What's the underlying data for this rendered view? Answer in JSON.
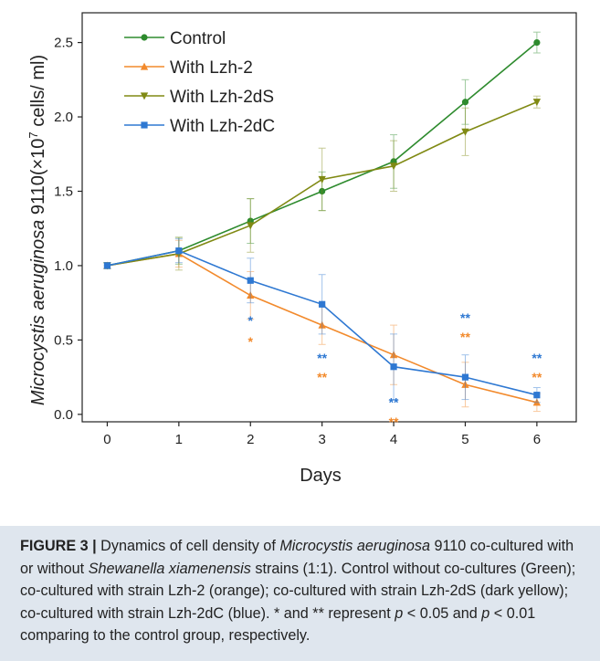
{
  "chart_data": {
    "type": "line",
    "xlabel": "Days",
    "ylabel_italic": "Microcystis aeruginosa",
    "ylabel_rest": " 9110(×10",
    "ylabel_sup": "7",
    "ylabel_end": " cells/ ml)",
    "x_ticks": [
      "0",
      "1",
      "2",
      "3",
      "4",
      "5",
      "6"
    ],
    "y_ticks": [
      "0.0",
      "0.5",
      "1.0",
      "1.5",
      "2.0",
      "2.5"
    ],
    "xlim": [
      -0.35,
      6.55
    ],
    "ylim": [
      -0.05,
      2.7
    ],
    "grid": false,
    "legend_position": "top-left",
    "series": [
      {
        "name": "Control",
        "color": "#2e8b2e",
        "marker": "circle",
        "x": [
          0,
          1,
          2,
          3,
          4,
          5,
          6
        ],
        "y": [
          1.0,
          1.1,
          1.3,
          1.5,
          1.7,
          2.1,
          2.5
        ],
        "err": [
          0.02,
          0.09,
          0.15,
          0.13,
          0.18,
          0.15,
          0.07
        ]
      },
      {
        "name": "With Lzh-2",
        "color": "#f28a2c",
        "marker": "triangle-up",
        "x": [
          0,
          1,
          2,
          3,
          4,
          5,
          6
        ],
        "y": [
          1.0,
          1.08,
          0.8,
          0.6,
          0.4,
          0.2,
          0.08
        ],
        "err": [
          0.02,
          0.09,
          0.16,
          0.13,
          0.2,
          0.15,
          0.06
        ]
      },
      {
        "name": "With Lzh-2dS",
        "color": "#808a14",
        "marker": "triangle-down",
        "x": [
          0,
          1,
          2,
          3,
          4,
          5,
          6
        ],
        "y": [
          1.0,
          1.08,
          1.27,
          1.58,
          1.67,
          1.9,
          2.1
        ],
        "err": [
          0.02,
          0.11,
          0.18,
          0.21,
          0.17,
          0.16,
          0.04
        ]
      },
      {
        "name": "With Lzh-2dC",
        "color": "#2e78d2",
        "marker": "square",
        "x": [
          0,
          1,
          2,
          3,
          4,
          5,
          6
        ],
        "y": [
          1.0,
          1.1,
          0.9,
          0.74,
          0.32,
          0.25,
          0.13
        ],
        "err": [
          0.02,
          0.08,
          0.15,
          0.2,
          0.22,
          0.15,
          0.05
        ]
      }
    ],
    "annotations": [
      {
        "x": 2,
        "y": 0.6,
        "text": "*",
        "color": "#2e78d2"
      },
      {
        "x": 2,
        "y": 0.46,
        "text": "*",
        "color": "#f28a2c"
      },
      {
        "x": 3,
        "y": 0.35,
        "text": "**",
        "color": "#2e78d2"
      },
      {
        "x": 3,
        "y": 0.22,
        "text": "**",
        "color": "#f28a2c"
      },
      {
        "x": 4,
        "y": 0.05,
        "text": "**",
        "color": "#2e78d2"
      },
      {
        "x": 4,
        "y": -0.08,
        "text": "**",
        "color": "#f28a2c"
      },
      {
        "x": 5,
        "y": 0.62,
        "text": "**",
        "color": "#2e78d2"
      },
      {
        "x": 5,
        "y": 0.49,
        "text": "**",
        "color": "#f28a2c"
      },
      {
        "x": 6,
        "y": 0.35,
        "text": "**",
        "color": "#2e78d2"
      },
      {
        "x": 6,
        "y": 0.22,
        "text": "**",
        "color": "#f28a2c"
      }
    ]
  },
  "caption": {
    "label": "FIGURE 3 |",
    "t1": " Dynamics of cell density of ",
    "i1": "Microcystis aeruginosa",
    "t2": " 9110 co-cultured with or without ",
    "i2": "Shewanella xiamenensis",
    "t3": " strains (1:1). Control without co-cultures (Green); co-cultured with strain Lzh-2 (orange); co-cultured with strain Lzh-2dS (dark yellow); co-cultured with strain Lzh-2dC (blue). * and ** represent ",
    "i3": "p",
    "t4": " < 0.05 and ",
    "i4": "p",
    "t5": " < 0.01 comparing to the control group, respectively."
  }
}
